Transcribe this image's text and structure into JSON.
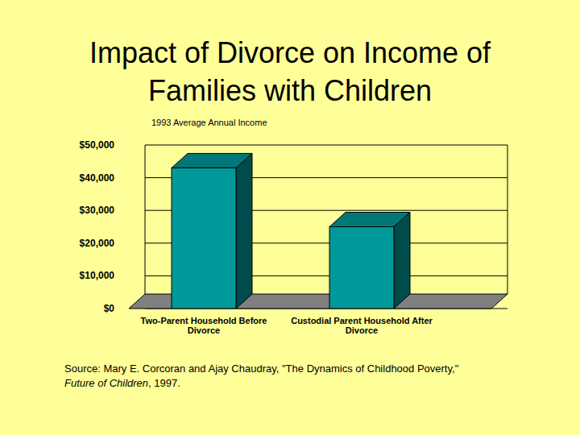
{
  "chart_data": {
    "type": "bar",
    "title": "Impact of Divorce on Income of Families with Children",
    "subtitle": "1993 Average Annual Income",
    "categories": [
      "Two-Parent Household Before Divorce",
      "Custodial Parent Household After Divorce"
    ],
    "values": [
      43000,
      25000
    ],
    "color": "#009999",
    "ylim": [
      0,
      50000
    ],
    "yticks": [
      {
        "value": 0,
        "label": "$0"
      },
      {
        "value": 10000,
        "label": "$10,000"
      },
      {
        "value": 20000,
        "label": "$20,000"
      },
      {
        "value": 30000,
        "label": "$30,000"
      },
      {
        "value": 40000,
        "label": "$40,000"
      },
      {
        "value": 50000,
        "label": "$50,000"
      }
    ],
    "grid": true,
    "source": [
      "Source: Mary E. Corcoran and Ajay Chaudray, \"The Dynamics of Childhood Poverty,\"",
      "Future of  Children",
      ", 1997."
    ]
  }
}
